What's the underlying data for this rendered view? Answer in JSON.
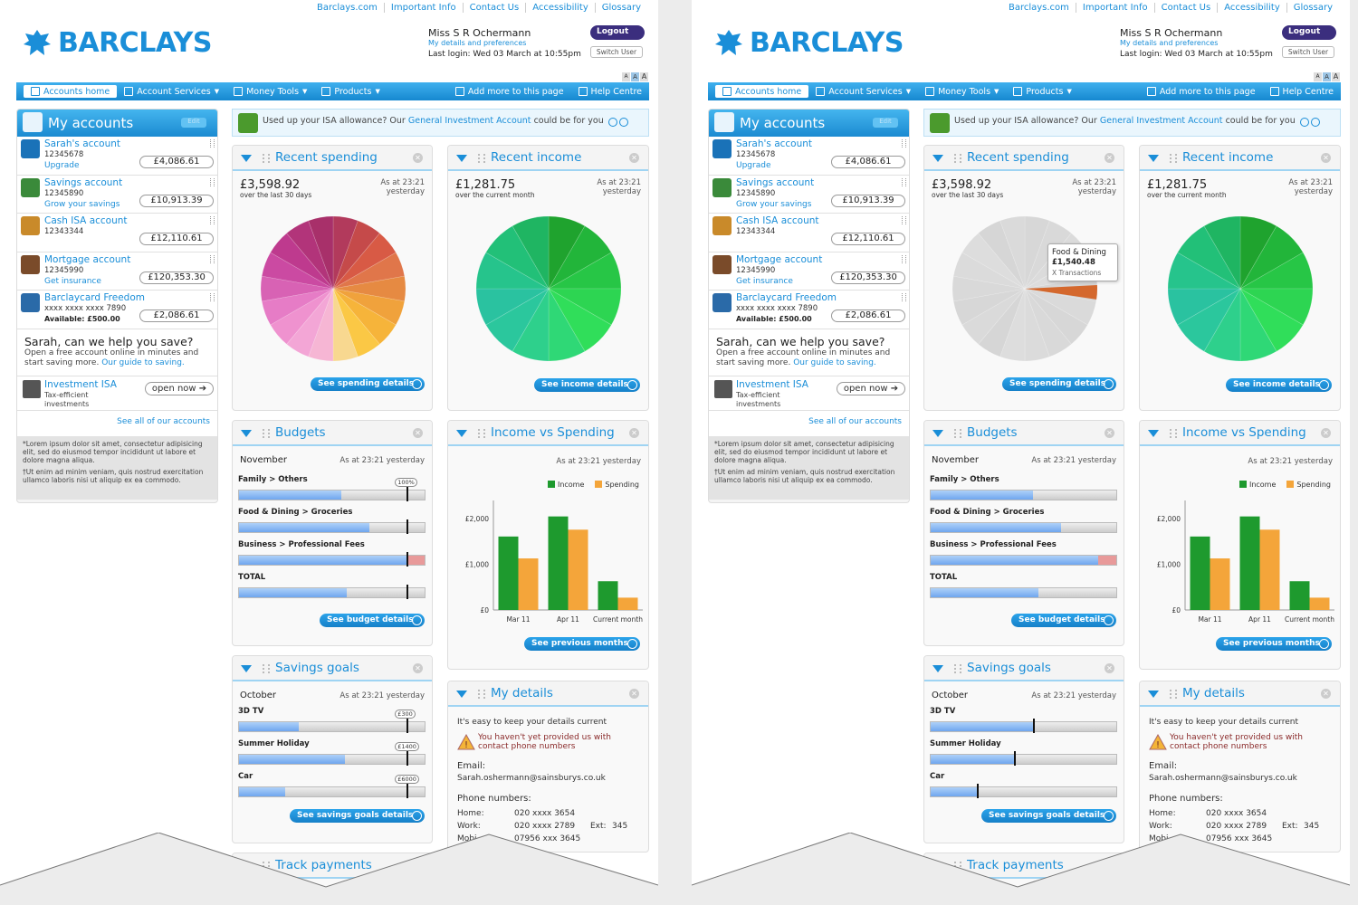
{
  "toplinks": [
    "Barclays.com",
    "Important Info",
    "Contact Us",
    "Accessibility",
    "Glossary"
  ],
  "brand": "BARCLAYS",
  "user": {
    "name": "Miss S R Ochermann",
    "details_link": "My details and preferences",
    "last_login": "Last login: Wed 03 March at 10:55pm",
    "logout_label": "Logout",
    "switch_label": "Switch User"
  },
  "font_sizes": [
    "A",
    "A",
    "A"
  ],
  "nav": {
    "home": "Accounts home",
    "items": [
      "Account Services",
      "Money Tools",
      "Products"
    ],
    "add": "Add more to this page",
    "help": "Help Centre"
  },
  "sidebar": {
    "title": "My accounts",
    "edit": "Edit",
    "accounts": [
      {
        "name": "Sarah's account",
        "number": "12345678",
        "link": "Upgrade",
        "balance": "£4,086.61",
        "icon": "people-icon"
      },
      {
        "name": "Savings account",
        "number": "12345890",
        "link": "Grow your savings",
        "balance": "£10,913.39",
        "icon": "piggy-icon"
      },
      {
        "name": "Cash ISA account",
        "number": "12343344",
        "link": "",
        "balance": "£12,110.61",
        "icon": "piggybank-icon"
      },
      {
        "name": "Mortgage account",
        "number": "12345990",
        "link": "Get insurance",
        "balance": "£120,353.30",
        "icon": "house-icon"
      },
      {
        "name": "Barclaycard Freedom",
        "number": "xxxx xxxx xxxx 7890",
        "link": "Available: £500.00",
        "balance": "£2,086.61",
        "icon": "card-icon"
      }
    ],
    "help_title": "Sarah, can we help you save?",
    "help_text": "Open a free account online in minutes and start saving more.",
    "help_link": "Our guide to saving.",
    "isa_name": "Investment ISA",
    "isa_text_1": "Tax-efficient",
    "isa_text_2": "investments",
    "isa_button": "open now",
    "see_all": "See all of our accounts",
    "fine_1": "*Lorem ipsum dolor sit amet, consectetur adipisicing elit, sed do eiusmod tempor incididunt ut labore et dolore magna aliqua.",
    "fine_2": "†Ut enim ad minim veniam, quis nostrud exercitation ullamco laboris nisi ut aliquip ex ea commodo."
  },
  "banner": {
    "text": "Used up your ISA allowance? Our",
    "link": "General Investment Account",
    "text_after": "could be for you"
  },
  "spending": {
    "title": "Recent spending",
    "amount": "£3,598.92",
    "sub": "over the last 30 days",
    "as_at_1": "As at 23:21",
    "as_at_2": "yesterday",
    "button": "See spending details"
  },
  "income": {
    "title": "Recent income",
    "amount": "£1,281.75",
    "sub": "over the current month",
    "as_at_1": "As at 23:21",
    "as_at_2": "yesterday",
    "button": "See income details"
  },
  "tooltip": {
    "category": "Food & Dining",
    "value": "£1,540.48",
    "note": "X Transactions"
  },
  "budgets": {
    "title": "Budgets",
    "month": "November",
    "as_at": "As at 23:21 yesterday",
    "button": "See budget details",
    "rows": [
      {
        "label": "Family > Others",
        "progress": 0.55,
        "tag": "100%"
      },
      {
        "label": "Food & Dining > Groceries",
        "progress": 0.7
      },
      {
        "label": "Business > Professional Fees",
        "progress": 0.9,
        "over": 0.1
      },
      {
        "label": "TOTAL",
        "progress": 0.58
      }
    ]
  },
  "ivs": {
    "title": "Income vs Spending",
    "as_at": "As at 23:21 yesterday",
    "button": "See previous months",
    "income_color": "#1e9a2e",
    "spending_color": "#f4a53a"
  },
  "chart_data": {
    "type": "bar",
    "categories": [
      "Mar 11",
      "Apr 11",
      "Current month"
    ],
    "series": [
      {
        "name": "Income",
        "values": [
          1610,
          2050,
          630
        ]
      },
      {
        "name": "Spending",
        "values": [
          1130,
          1760,
          270
        ]
      }
    ],
    "yticks": [
      "£2,000",
      "£1,000",
      "£0"
    ],
    "ylim": [
      0,
      2400
    ]
  },
  "savings": {
    "title": "Savings goals",
    "month": "October",
    "as_at": "As at 23:21 yesterday",
    "button": "See savings goals details",
    "rows_left": [
      {
        "label": "3D TV",
        "progress": 0.32,
        "tag": "£300"
      },
      {
        "label": "Summer Holiday",
        "progress": 0.57,
        "tag": "£1400"
      },
      {
        "label": "Car",
        "progress": 0.25,
        "tag": "£6000"
      }
    ],
    "rows_right": [
      {
        "label": "3D TV",
        "progress": 0.55
      },
      {
        "label": "Summer Holiday",
        "progress": 0.45
      },
      {
        "label": "Car",
        "progress": 0.25
      }
    ]
  },
  "details": {
    "title": "My details",
    "intro": "It's easy to keep your details current",
    "warn_1": "You haven't yet provided us with",
    "warn_2": "contact phone numbers",
    "email_label": "Email:",
    "email": "Sarah.oshermann@sainsburys.co.uk",
    "phones_label": "Phone numbers:",
    "home_label": "Home:",
    "home": "020 xxxx 3654",
    "work_label": "Work:",
    "work": "020 xxxx 2789",
    "ext_label": "Ext:",
    "ext": "345",
    "mobile_label": "Mobi",
    "mobile": "07956 xxx 3645"
  },
  "track": {
    "title": "Track payments"
  }
}
